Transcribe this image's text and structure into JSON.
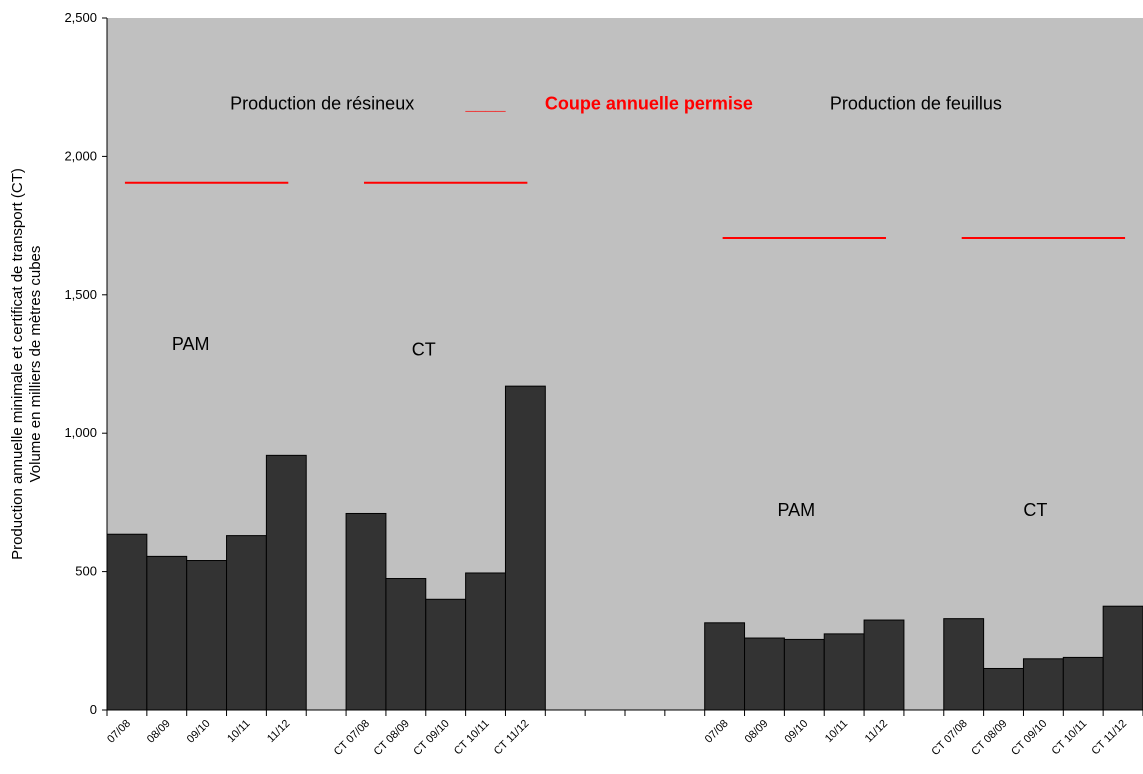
{
  "chart_data": {
    "type": "bar",
    "ylabel_lines": [
      "Production annuelle minimale et certificat de transport (CT)",
      "Volume en milliers de mètres cubes"
    ],
    "ylim": [
      0,
      2500
    ],
    "yticks": [
      0,
      500,
      1000,
      1500,
      2000,
      2500
    ],
    "ytick_labels": [
      "0",
      "500",
      "1,000",
      "1,500",
      "2,000",
      "2,500"
    ],
    "grid": false,
    "plot_background": "#c0c0c0",
    "bar_color": "#333333",
    "limit_color": "#ff0000",
    "categories": [
      "07/08",
      "08/09",
      "09/10",
      "10/11",
      "11/12",
      "",
      "CT 07/08",
      "CT 08/09",
      "CT 09/10",
      "CT 10/11",
      "CT 11/12",
      "",
      "",
      "",
      "",
      "07/08",
      "08/09",
      "09/10",
      "10/11",
      "11/12",
      "",
      "CT 07/08",
      "CT 08/09",
      "CT 09/10",
      "CT 10/11",
      "CT 11/12"
    ],
    "values": [
      635,
      555,
      540,
      630,
      920,
      null,
      710,
      475,
      400,
      495,
      1170,
      null,
      null,
      null,
      null,
      315,
      260,
      255,
      275,
      325,
      null,
      330,
      150,
      185,
      190,
      375
    ],
    "limit_lines": [
      {
        "from_index": 0,
        "to_index": 4,
        "value": 1905
      },
      {
        "from_index": 6,
        "to_index": 10,
        "value": 1905
      },
      {
        "from_index": 15,
        "to_index": 19,
        "value": 1705
      },
      {
        "from_index": 21,
        "to_index": 25,
        "value": 1705
      }
    ],
    "annotations": [
      {
        "text": "Production de résineux",
        "x_index": 5.4,
        "y": 2170,
        "style": "normal"
      },
      {
        "text": "____",
        "x_index": 9.5,
        "y": 2170,
        "style": "red"
      },
      {
        "text": "Coupe annuelle permise",
        "x_index": 13.6,
        "y": 2170,
        "style": "red"
      },
      {
        "text": "Production de feuillus",
        "x_index": 20.3,
        "y": 2170,
        "style": "normal"
      },
      {
        "text": "PAM",
        "x_index": 2.1,
        "y": 1300,
        "style": "normal"
      },
      {
        "text": "CT",
        "x_index": 7.95,
        "y": 1280,
        "style": "normal"
      },
      {
        "text": "PAM",
        "x_index": 17.3,
        "y": 700,
        "style": "normal"
      },
      {
        "text": "CT",
        "x_index": 23.3,
        "y": 700,
        "style": "normal"
      }
    ]
  }
}
